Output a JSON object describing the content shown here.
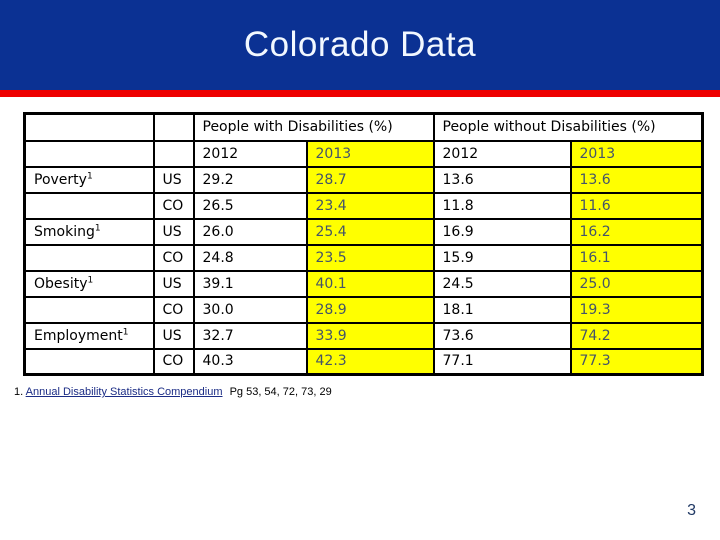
{
  "slide": {
    "title": "Colorado Data",
    "page_number": "3",
    "colors": {
      "banner_blue": "#0B3193",
      "accent_red": "#EE0000",
      "highlight_yellow": "#FFFF00",
      "highlight_text": "#44546A",
      "navy": "#1F3864",
      "link_blue": "#1B2C85"
    }
  },
  "table": {
    "group_headers": [
      "People with Disabilities (%)",
      "People without Disabilities (%)"
    ],
    "year_headers": [
      "2012",
      "2013",
      "2012",
      "2013"
    ],
    "rows": [
      {
        "category": "Poverty",
        "footnote_marker": "1",
        "geo": "US",
        "values": [
          "29.2",
          "28.7",
          "13.6",
          "13.6"
        ]
      },
      {
        "category": "",
        "footnote_marker": "",
        "geo": "CO",
        "values": [
          "26.5",
          "23.4",
          "11.8",
          "11.6"
        ]
      },
      {
        "category": "Smoking",
        "footnote_marker": "1",
        "geo": "US",
        "values": [
          "26.0",
          "25.4",
          "16.9",
          "16.2"
        ]
      },
      {
        "category": "",
        "footnote_marker": "",
        "geo": "CO",
        "values": [
          "24.8",
          "23.5",
          "15.9",
          "16.1"
        ]
      },
      {
        "category": "Obesity",
        "footnote_marker": "1",
        "geo": "US",
        "values": [
          "39.1",
          "40.1",
          "24.5",
          "25.0"
        ]
      },
      {
        "category": "",
        "footnote_marker": "",
        "geo": "CO",
        "values": [
          "30.0",
          "28.9",
          "18.1",
          "19.3"
        ]
      },
      {
        "category": "Employment",
        "footnote_marker": "1",
        "geo": "US",
        "values": [
          "32.7",
          "33.9",
          "73.6",
          "74.2"
        ]
      },
      {
        "category": "",
        "footnote_marker": "",
        "geo": "CO",
        "values": [
          "40.3",
          "42.3",
          "77.1",
          "77.3"
        ]
      }
    ]
  },
  "footnote": {
    "marker": "1.",
    "link_text": "Annual Disability Statistics Compendium",
    "suffix": "Pg 53, 54, 72, 73, 29"
  }
}
